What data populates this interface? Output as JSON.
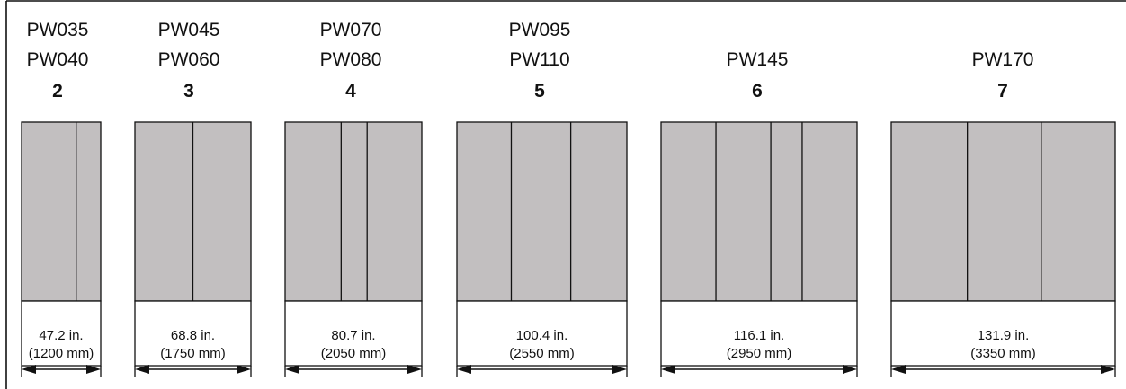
{
  "colors": {
    "panel": "#c2bfc0",
    "line": "#111111",
    "background": "#ffffff"
  },
  "units": [
    {
      "models": [
        "PW035",
        "PW040"
      ],
      "sections": "2",
      "width_in": "47.2 in.",
      "width_mm": "(1200 mm)",
      "column_width_fractions": [
        0.69,
        0.31
      ]
    },
    {
      "models": [
        "PW045",
        "PW060"
      ],
      "sections": "3",
      "width_in": "68.8 in.",
      "width_mm": "(1750 mm)",
      "column_width_fractions": [
        0.5,
        0.5
      ]
    },
    {
      "models": [
        "PW070",
        "PW080"
      ],
      "sections": "4",
      "width_in": "80.7 in.",
      "width_mm": "(2050 mm)",
      "column_width_fractions": [
        0.41,
        0.19,
        0.4
      ]
    },
    {
      "models": [
        "PW095",
        "PW110"
      ],
      "sections": "5",
      "width_in": "100.4 in.",
      "width_mm": "(2550 mm)",
      "column_width_fractions": [
        0.32,
        0.35,
        0.33
      ]
    },
    {
      "models": [
        "PW145"
      ],
      "sections": "6",
      "width_in": "116.1 in.",
      "width_mm": "(2950 mm)",
      "column_width_fractions": [
        0.28,
        0.28,
        0.16,
        0.28
      ]
    },
    {
      "models": [
        "PW170"
      ],
      "sections": "7",
      "width_in": "131.9 in.",
      "width_mm": "(3350 mm)",
      "column_width_fractions": [
        0.34,
        0.33,
        0.33
      ]
    }
  ]
}
